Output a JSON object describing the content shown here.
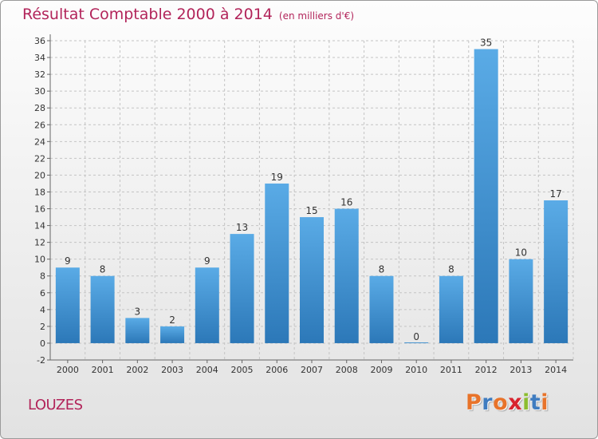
{
  "title": "Résultat Comptable 2000 à 2014",
  "subtitle": "(en milliers d'€)",
  "location": "LOUZES",
  "logo": {
    "text": "Proxiti",
    "letter_colors": [
      "#e8732a",
      "#3f7cc0",
      "#e8732a",
      "#d8242f",
      "#8cbd2f",
      "#3f7cc0",
      "#e8732a"
    ]
  },
  "colors": {
    "title": "#b2245a",
    "bar_top": "#5aabe6",
    "bar_bottom": "#2c78b8",
    "grid": "#c4c4c4",
    "text": "#333333"
  },
  "chart_data": {
    "type": "bar",
    "categories": [
      "2000",
      "2001",
      "2002",
      "2003",
      "2004",
      "2005",
      "2006",
      "2007",
      "2008",
      "2009",
      "2010",
      "2011",
      "2012",
      "2013",
      "2014"
    ],
    "values": [
      9,
      8,
      3,
      2,
      9,
      13,
      19,
      15,
      16,
      8,
      0,
      8,
      35,
      10,
      17
    ],
    "data_labels": [
      "9",
      "8",
      "3",
      "2",
      "9",
      "13",
      "19",
      "15",
      "16",
      "8",
      "0",
      "8",
      "35",
      "10",
      "17"
    ],
    "ylim": [
      -2,
      36
    ],
    "yticks": [
      -2,
      0,
      2,
      4,
      6,
      8,
      10,
      12,
      14,
      16,
      18,
      20,
      22,
      24,
      26,
      28,
      30,
      32,
      34,
      36
    ],
    "grid": true,
    "xlabel": "",
    "ylabel": ""
  }
}
